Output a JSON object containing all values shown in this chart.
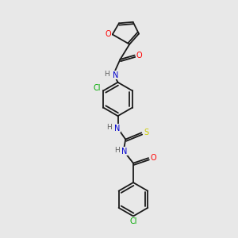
{
  "background_color": "#e8e8e8",
  "bond_color": "#1a1a1a",
  "atom_colors": {
    "O": "#ff0000",
    "N": "#0000cd",
    "S": "#cccc00",
    "Cl": "#00aa00",
    "C": "#1a1a1a",
    "H": "#606060"
  },
  "figsize": [
    3.0,
    3.0
  ],
  "dpi": 100,
  "lw": 1.3,
  "fs": 7.0
}
